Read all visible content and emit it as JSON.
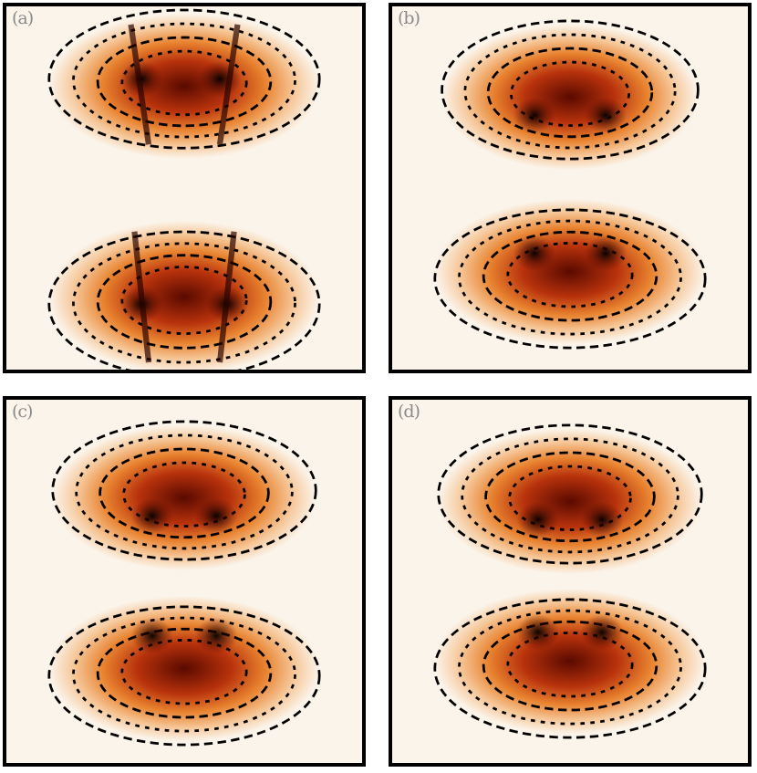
{
  "panels": [
    {
      "id": "a",
      "label": "(a)"
    },
    {
      "id": "b",
      "label": "(b)"
    },
    {
      "id": "c",
      "label": "(c)"
    },
    {
      "id": "d",
      "label": "(d)"
    }
  ],
  "colors": {
    "background": "#fbf4ea",
    "colormap": [
      "#fbf4ea",
      "#f6c89a",
      "#e8822f",
      "#b8320c",
      "#5a0a00",
      "#000000"
    ],
    "contour": "#000000",
    "border": "#000000"
  }
}
